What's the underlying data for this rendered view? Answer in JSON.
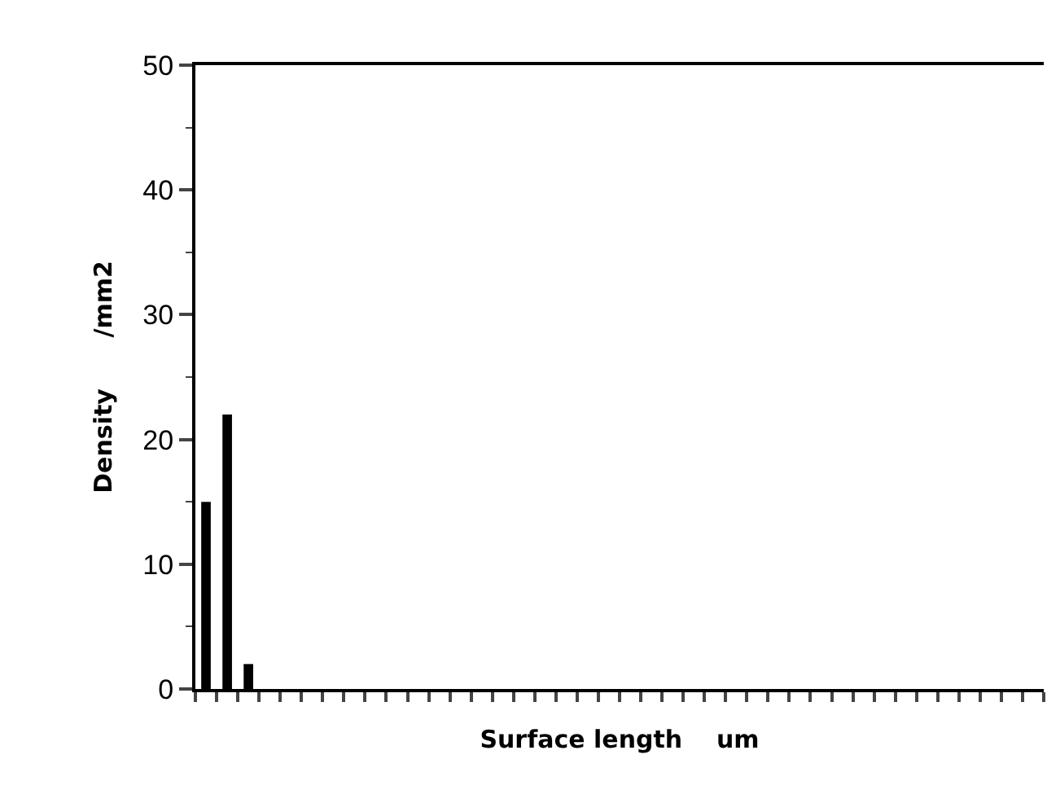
{
  "chart_data": {
    "type": "bar",
    "xlabel": "Surface length    um",
    "ylabel": "Density      /mm2",
    "categories": [
      null,
      null,
      null,
      null,
      null,
      null,
      null,
      null,
      null,
      null,
      null,
      null,
      null,
      null,
      null,
      null,
      null,
      null,
      null,
      null,
      null,
      null,
      null,
      null,
      null,
      null,
      null,
      null,
      null,
      null,
      null,
      null,
      null,
      null,
      null,
      null,
      null,
      null,
      null,
      null
    ],
    "values": [
      15,
      22,
      2,
      0,
      0,
      0,
      0,
      0,
      0,
      0,
      0,
      0,
      0,
      0,
      0,
      0,
      0,
      0,
      0,
      0,
      0,
      0,
      0,
      0,
      0,
      0,
      0,
      0,
      0,
      0,
      0,
      0,
      0,
      0,
      0,
      0,
      0,
      0,
      0,
      0
    ],
    "color": "#000000",
    "ylim": [
      0,
      50
    ],
    "yticks": [
      0,
      10,
      20,
      30,
      40,
      50
    ]
  }
}
